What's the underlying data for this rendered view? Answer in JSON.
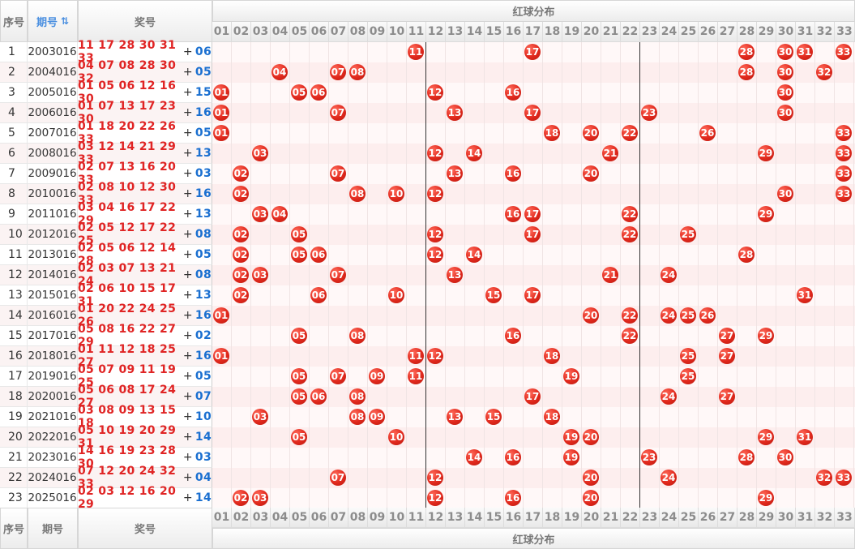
{
  "header": {
    "col_index": "序号",
    "col_period": "期号",
    "sort_icon": "⇅",
    "col_numbers": "奖号",
    "red_title": "红球分布"
  },
  "footer": {
    "col_index": "序号",
    "col_period": "期号",
    "col_numbers": "奖号",
    "red_title": "红球分布"
  },
  "columns": [
    "01",
    "02",
    "03",
    "04",
    "05",
    "06",
    "07",
    "08",
    "09",
    "10",
    "11",
    "12",
    "13",
    "14",
    "15",
    "16",
    "17",
    "18",
    "19",
    "20",
    "21",
    "22",
    "23",
    "24",
    "25",
    "26",
    "27",
    "28",
    "29",
    "30",
    "31",
    "32",
    "33"
  ],
  "colors": {
    "red": "#e02424",
    "blue": "#1a6fd0",
    "row_stripe": "#fdeeee"
  },
  "rows": [
    {
      "idx": "1",
      "period": "2003016",
      "reds": [
        "11",
        "17",
        "28",
        "30",
        "31",
        "33"
      ],
      "blue": "06"
    },
    {
      "idx": "2",
      "period": "2004016",
      "reds": [
        "04",
        "07",
        "08",
        "28",
        "30",
        "32"
      ],
      "blue": "05"
    },
    {
      "idx": "3",
      "period": "2005016",
      "reds": [
        "01",
        "05",
        "06",
        "12",
        "16",
        "30"
      ],
      "blue": "15"
    },
    {
      "idx": "4",
      "period": "2006016",
      "reds": [
        "01",
        "07",
        "13",
        "17",
        "23",
        "30"
      ],
      "blue": "16"
    },
    {
      "idx": "5",
      "period": "2007016",
      "reds": [
        "01",
        "18",
        "20",
        "22",
        "26",
        "33"
      ],
      "blue": "05"
    },
    {
      "idx": "6",
      "period": "2008016",
      "reds": [
        "03",
        "12",
        "14",
        "21",
        "29",
        "33"
      ],
      "blue": "13"
    },
    {
      "idx": "7",
      "period": "2009016",
      "reds": [
        "02",
        "07",
        "13",
        "16",
        "20",
        "33"
      ],
      "blue": "03"
    },
    {
      "idx": "8",
      "period": "2010016",
      "reds": [
        "02",
        "08",
        "10",
        "12",
        "30",
        "33"
      ],
      "blue": "16"
    },
    {
      "idx": "9",
      "period": "2011016",
      "reds": [
        "03",
        "04",
        "16",
        "17",
        "22",
        "29"
      ],
      "blue": "13"
    },
    {
      "idx": "10",
      "period": "2012016",
      "reds": [
        "02",
        "05",
        "12",
        "17",
        "22",
        "25"
      ],
      "blue": "08"
    },
    {
      "idx": "11",
      "period": "2013016",
      "reds": [
        "02",
        "05",
        "06",
        "12",
        "14",
        "28"
      ],
      "blue": "05"
    },
    {
      "idx": "12",
      "period": "2014016",
      "reds": [
        "02",
        "03",
        "07",
        "13",
        "21",
        "24"
      ],
      "blue": "08"
    },
    {
      "idx": "13",
      "period": "2015016",
      "reds": [
        "02",
        "06",
        "10",
        "15",
        "17",
        "31"
      ],
      "blue": "13"
    },
    {
      "idx": "14",
      "period": "2016016",
      "reds": [
        "01",
        "20",
        "22",
        "24",
        "25",
        "26"
      ],
      "blue": "16"
    },
    {
      "idx": "15",
      "period": "2017016",
      "reds": [
        "05",
        "08",
        "16",
        "22",
        "27",
        "29"
      ],
      "blue": "02"
    },
    {
      "idx": "16",
      "period": "2018016",
      "reds": [
        "01",
        "11",
        "12",
        "18",
        "25",
        "27"
      ],
      "blue": "16"
    },
    {
      "idx": "17",
      "period": "2019016",
      "reds": [
        "05",
        "07",
        "09",
        "11",
        "19",
        "25"
      ],
      "blue": "05"
    },
    {
      "idx": "18",
      "period": "2020016",
      "reds": [
        "05",
        "06",
        "08",
        "17",
        "24",
        "27"
      ],
      "blue": "07"
    },
    {
      "idx": "19",
      "period": "2021016",
      "reds": [
        "03",
        "08",
        "09",
        "13",
        "15",
        "18"
      ],
      "blue": "10"
    },
    {
      "idx": "20",
      "period": "2022016",
      "reds": [
        "05",
        "10",
        "19",
        "20",
        "29",
        "31"
      ],
      "blue": "14"
    },
    {
      "idx": "21",
      "period": "2023016",
      "reds": [
        "14",
        "16",
        "19",
        "23",
        "28",
        "30"
      ],
      "blue": "03"
    },
    {
      "idx": "22",
      "period": "2024016",
      "reds": [
        "07",
        "12",
        "20",
        "24",
        "32",
        "33"
      ],
      "blue": "04"
    },
    {
      "idx": "23",
      "period": "2025016",
      "reds": [
        "02",
        "03",
        "12",
        "16",
        "20",
        "29"
      ],
      "blue": "14"
    }
  ]
}
